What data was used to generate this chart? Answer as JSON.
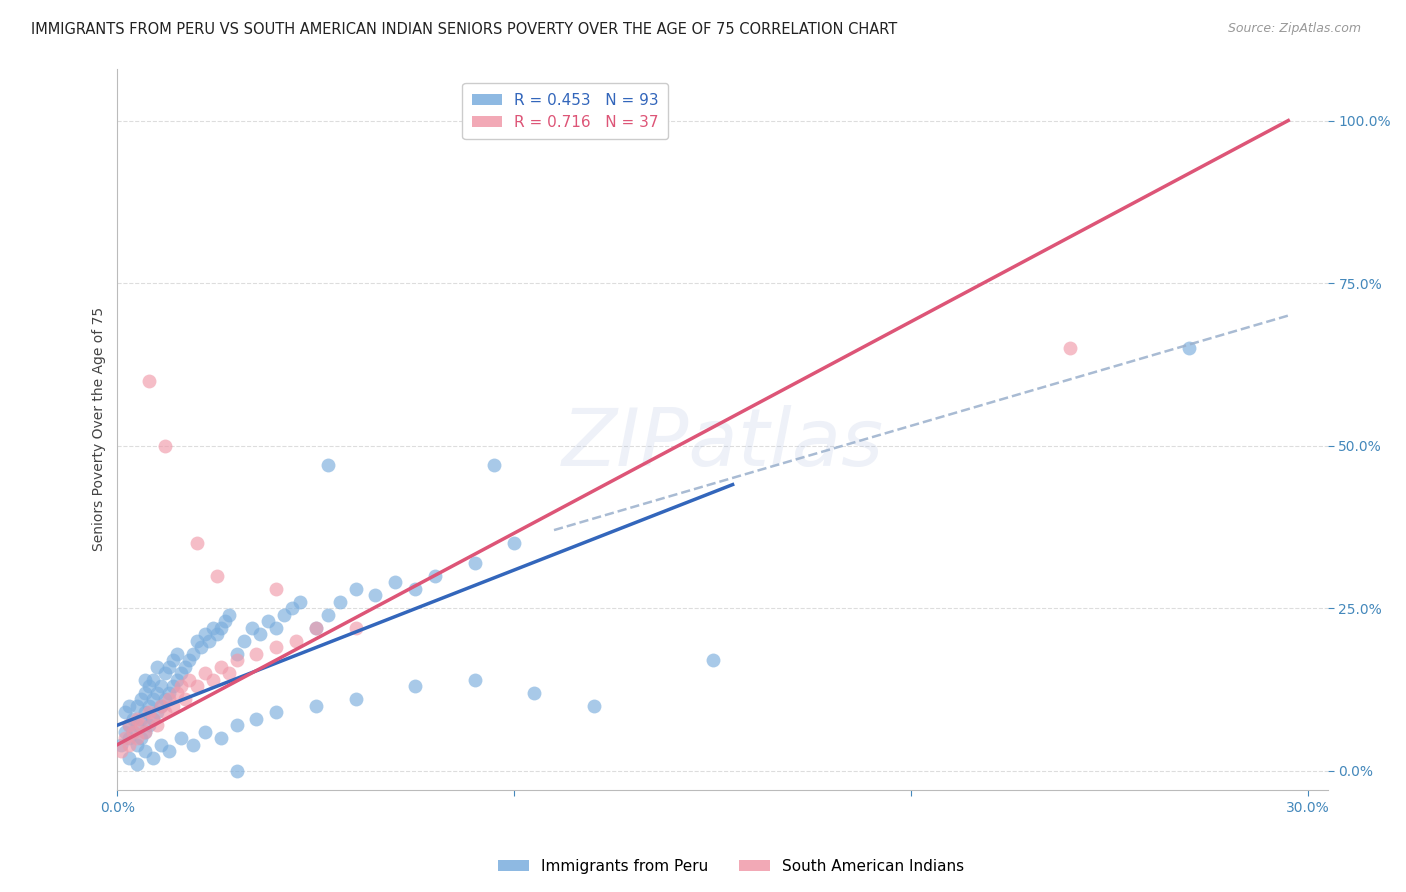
{
  "title": "IMMIGRANTS FROM PERU VS SOUTH AMERICAN INDIAN SENIORS POVERTY OVER THE AGE OF 75 CORRELATION CHART",
  "source": "Source: ZipAtlas.com",
  "ylabel": "Seniors Poverty Over the Age of 75",
  "xlim": [
    0.0,
    0.305
  ],
  "ylim": [
    -0.03,
    1.08
  ],
  "yticks": [
    0.0,
    0.25,
    0.5,
    0.75,
    1.0
  ],
  "ytick_labels": [
    "0.0%",
    "25.0%",
    "50.0%",
    "75.0%",
    "100.0%"
  ],
  "xticks": [
    0.0,
    0.1,
    0.2,
    0.3
  ],
  "xtick_labels": [
    "0.0%",
    "",
    "",
    "30.0%"
  ],
  "legend1_label": "R = 0.453   N = 93",
  "legend2_label": "R = 0.716   N = 37",
  "legend_bottom_label1": "Immigrants from Peru",
  "legend_bottom_label2": "South American Indians",
  "blue_color": "#7aaddd",
  "pink_color": "#f09aaa",
  "blue_line_color": "#3366bb",
  "pink_line_color": "#dd5577",
  "dashed_line_color": "#9ab0cc",
  "watermark": "ZIPatlas",
  "blue_scatter_x": [
    0.001,
    0.002,
    0.002,
    0.003,
    0.003,
    0.003,
    0.004,
    0.004,
    0.005,
    0.005,
    0.005,
    0.006,
    0.006,
    0.006,
    0.007,
    0.007,
    0.007,
    0.007,
    0.008,
    0.008,
    0.008,
    0.009,
    0.009,
    0.009,
    0.01,
    0.01,
    0.01,
    0.011,
    0.011,
    0.012,
    0.012,
    0.013,
    0.013,
    0.014,
    0.014,
    0.015,
    0.015,
    0.016,
    0.017,
    0.018,
    0.019,
    0.02,
    0.021,
    0.022,
    0.023,
    0.024,
    0.025,
    0.026,
    0.027,
    0.028,
    0.03,
    0.032,
    0.034,
    0.036,
    0.038,
    0.04,
    0.042,
    0.044,
    0.046,
    0.05,
    0.053,
    0.056,
    0.06,
    0.065,
    0.07,
    0.075,
    0.08,
    0.09,
    0.1,
    0.003,
    0.005,
    0.007,
    0.009,
    0.011,
    0.013,
    0.016,
    0.019,
    0.022,
    0.026,
    0.03,
    0.035,
    0.04,
    0.05,
    0.06,
    0.075,
    0.09,
    0.105,
    0.12,
    0.15,
    0.053,
    0.095,
    0.27,
    0.03
  ],
  "blue_scatter_y": [
    0.04,
    0.06,
    0.09,
    0.05,
    0.07,
    0.1,
    0.06,
    0.08,
    0.04,
    0.07,
    0.1,
    0.05,
    0.08,
    0.11,
    0.06,
    0.09,
    0.12,
    0.14,
    0.07,
    0.1,
    0.13,
    0.08,
    0.11,
    0.14,
    0.09,
    0.12,
    0.16,
    0.1,
    0.13,
    0.11,
    0.15,
    0.12,
    0.16,
    0.13,
    0.17,
    0.14,
    0.18,
    0.15,
    0.16,
    0.17,
    0.18,
    0.2,
    0.19,
    0.21,
    0.2,
    0.22,
    0.21,
    0.22,
    0.23,
    0.24,
    0.18,
    0.2,
    0.22,
    0.21,
    0.23,
    0.22,
    0.24,
    0.25,
    0.26,
    0.22,
    0.24,
    0.26,
    0.28,
    0.27,
    0.29,
    0.28,
    0.3,
    0.32,
    0.35,
    0.02,
    0.01,
    0.03,
    0.02,
    0.04,
    0.03,
    0.05,
    0.04,
    0.06,
    0.05,
    0.07,
    0.08,
    0.09,
    0.1,
    0.11,
    0.13,
    0.14,
    0.12,
    0.1,
    0.17,
    0.47,
    0.47,
    0.65,
    0.0
  ],
  "pink_scatter_x": [
    0.001,
    0.002,
    0.003,
    0.003,
    0.004,
    0.005,
    0.005,
    0.006,
    0.007,
    0.008,
    0.009,
    0.01,
    0.011,
    0.012,
    0.013,
    0.014,
    0.015,
    0.016,
    0.017,
    0.018,
    0.02,
    0.022,
    0.024,
    0.026,
    0.028,
    0.03,
    0.035,
    0.04,
    0.045,
    0.05,
    0.008,
    0.012,
    0.02,
    0.025,
    0.04,
    0.06,
    0.24
  ],
  "pink_scatter_y": [
    0.03,
    0.05,
    0.04,
    0.07,
    0.06,
    0.05,
    0.08,
    0.07,
    0.06,
    0.09,
    0.08,
    0.07,
    0.1,
    0.09,
    0.11,
    0.1,
    0.12,
    0.13,
    0.11,
    0.14,
    0.13,
    0.15,
    0.14,
    0.16,
    0.15,
    0.17,
    0.18,
    0.19,
    0.2,
    0.22,
    0.6,
    0.5,
    0.35,
    0.3,
    0.28,
    0.22,
    0.65
  ],
  "blue_line_x0": 0.0,
  "blue_line_y0": 0.07,
  "blue_line_x1": 0.155,
  "blue_line_y1": 0.44,
  "dashed_line_x0": 0.11,
  "dashed_line_y0": 0.37,
  "dashed_line_x1": 0.295,
  "dashed_line_y1": 0.7,
  "pink_line_x0": 0.0,
  "pink_line_y0": 0.04,
  "pink_line_x1": 0.295,
  "pink_line_y1": 1.0,
  "grid_color": "#dddddd",
  "background_color": "#ffffff",
  "title_fontsize": 10.5,
  "axis_label_fontsize": 10,
  "tick_fontsize": 10,
  "legend_fontsize": 11,
  "watermark_color": "#aabbdd",
  "watermark_fontsize": 58,
  "watermark_alpha": 0.2
}
